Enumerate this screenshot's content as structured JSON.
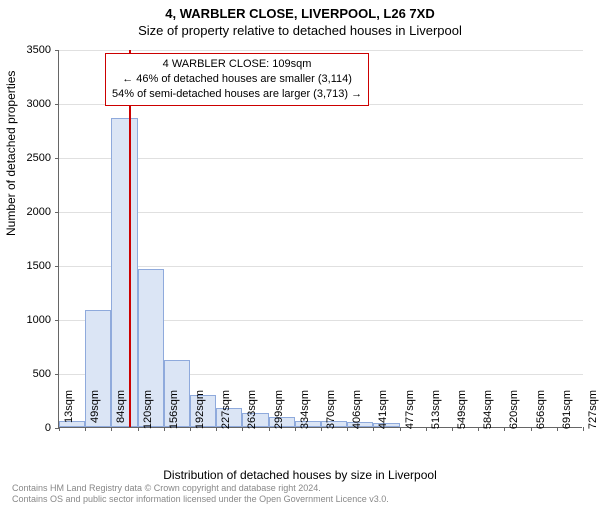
{
  "title_line1": "4, WARBLER CLOSE, LIVERPOOL, L26 7XD",
  "title_line2": "Size of property relative to detached houses in Liverpool",
  "ylabel": "Number of detached properties",
  "xlabel": "Distribution of detached houses by size in Liverpool",
  "chart": {
    "type": "histogram",
    "ylim": [
      0,
      3500
    ],
    "ytick_step": 500,
    "yticks": [
      0,
      500,
      1000,
      1500,
      2000,
      2500,
      3000,
      3500
    ],
    "xticks": [
      "13sqm",
      "49sqm",
      "84sqm",
      "120sqm",
      "156sqm",
      "192sqm",
      "227sqm",
      "263sqm",
      "299sqm",
      "334sqm",
      "370sqm",
      "406sqm",
      "441sqm",
      "477sqm",
      "513sqm",
      "549sqm",
      "584sqm",
      "620sqm",
      "656sqm",
      "691sqm",
      "727sqm"
    ],
    "bar_values": [
      60,
      1080,
      2860,
      1460,
      620,
      300,
      180,
      130,
      90,
      60,
      55,
      50,
      40,
      0,
      0,
      0,
      0,
      0,
      0,
      0
    ],
    "bar_fill": "#dbe5f5",
    "bar_border": "#8faadc",
    "grid_color": "#e0e0e0",
    "axis_color": "#666666",
    "background_color": "#ffffff",
    "title_fontsize": 13,
    "label_fontsize": 12,
    "tick_fontsize": 11
  },
  "marker": {
    "color": "#cc0000",
    "position_sqm": 109,
    "box_line1": "4 WARBLER CLOSE: 109sqm",
    "box_line2": "← 46% of detached houses are smaller (3,114)",
    "box_line3": "54% of semi-detached houses are larger (3,713) →"
  },
  "footer_line1": "Contains HM Land Registry data © Crown copyright and database right 2024.",
  "footer_line2": "Contains OS and public sector information licensed under the Open Government Licence v3.0."
}
